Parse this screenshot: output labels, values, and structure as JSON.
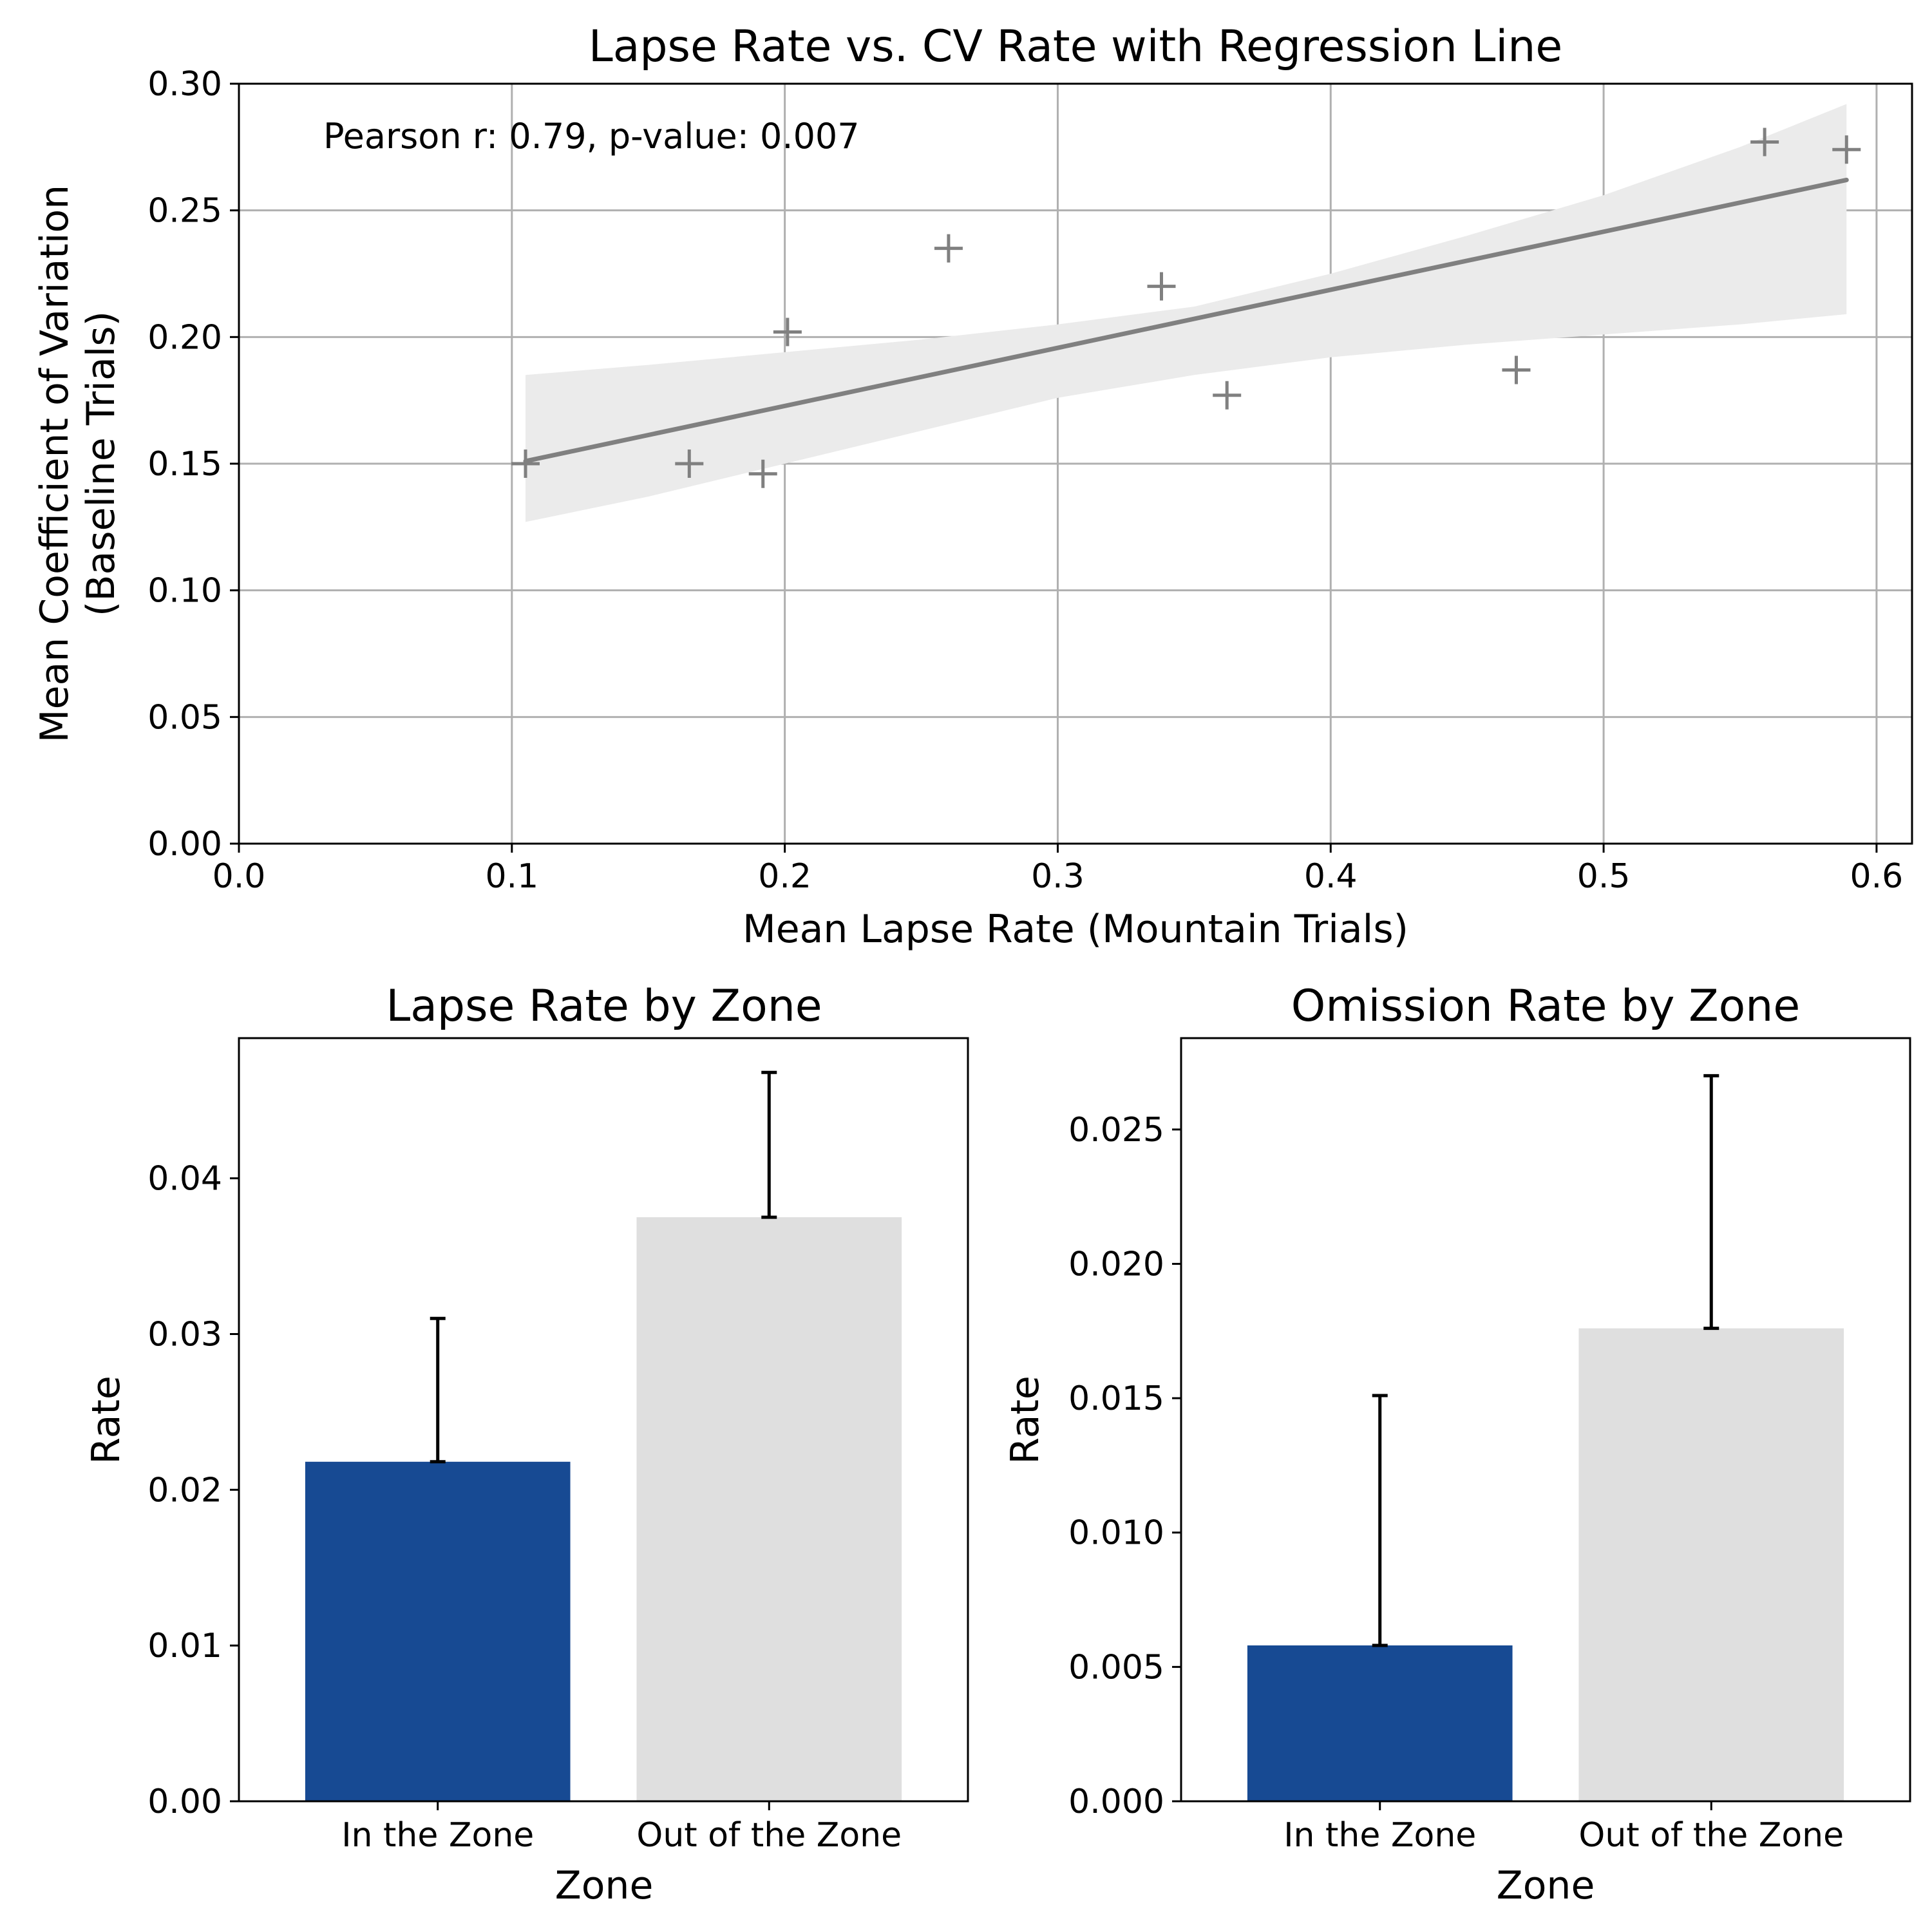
{
  "chart_data": [
    {
      "type": "scatter",
      "title": "Lapse Rate vs. CV Rate with Regression Line",
      "xlabel": "Mean Lapse Rate (Mountain Trials)",
      "ylabel_lines": [
        "Mean Coefficient of Variation",
        "(Baseline Trials)"
      ],
      "annotation": "Pearson r: 0.79, p-value: 0.007",
      "xlim": [
        0,
        0.613
      ],
      "ylim": [
        0,
        0.3
      ],
      "xticks": [
        "0.0",
        "0.1",
        "0.2",
        "0.3",
        "0.4",
        "0.5",
        "0.6"
      ],
      "yticks": [
        "0.00",
        "0.05",
        "0.10",
        "0.15",
        "0.20",
        "0.25",
        "0.30"
      ],
      "grid": true,
      "marker": "+",
      "color": "#808080",
      "band_color": "#ebebeb",
      "points": [
        {
          "x": 0.105,
          "y": 0.15
        },
        {
          "x": 0.165,
          "y": 0.15
        },
        {
          "x": 0.192,
          "y": 0.146
        },
        {
          "x": 0.201,
          "y": 0.202
        },
        {
          "x": 0.26,
          "y": 0.235
        },
        {
          "x": 0.338,
          "y": 0.22
        },
        {
          "x": 0.362,
          "y": 0.177
        },
        {
          "x": 0.468,
          "y": 0.187
        },
        {
          "x": 0.559,
          "y": 0.277
        },
        {
          "x": 0.589,
          "y": 0.274
        }
      ],
      "regression": {
        "x": [
          0.105,
          0.589
        ],
        "y": [
          0.151,
          0.262
        ]
      },
      "confidence_band": {
        "x": [
          0.105,
          0.15,
          0.2,
          0.25,
          0.3,
          0.35,
          0.4,
          0.45,
          0.5,
          0.55,
          0.589
        ],
        "upper": [
          0.185,
          0.189,
          0.194,
          0.199,
          0.205,
          0.212,
          0.225,
          0.24,
          0.256,
          0.275,
          0.292
        ],
        "lower": [
          0.127,
          0.137,
          0.15,
          0.163,
          0.176,
          0.185,
          0.192,
          0.197,
          0.201,
          0.205,
          0.209
        ]
      }
    },
    {
      "type": "bar",
      "title": "Lapse Rate by Zone",
      "xlabel": "Zone",
      "ylabel": "Rate",
      "categories": [
        "In the Zone",
        "Out of the Zone"
      ],
      "values": [
        0.0218,
        0.0375
      ],
      "errors": [
        0.0092,
        0.0093
      ],
      "colors": [
        "#174a93",
        "#dfdfdf"
      ],
      "ylim": [
        0,
        0.049
      ],
      "yticks": [
        0,
        0.01,
        0.02,
        0.03,
        0.04
      ],
      "ytick_labels": [
        "0.00",
        "0.01",
        "0.02",
        "0.03",
        "0.04"
      ]
    },
    {
      "type": "bar",
      "title": "Omission Rate by Zone",
      "xlabel": "Zone",
      "ylabel": "Rate",
      "categories": [
        "In the Zone",
        "Out of the Zone"
      ],
      "values": [
        0.0058,
        0.0176
      ],
      "errors": [
        0.0093,
        0.0094
      ],
      "colors": [
        "#174a93",
        "#dfdfdf"
      ],
      "ylim": [
        0,
        0.0284
      ],
      "yticks": [
        0,
        0.005,
        0.01,
        0.015,
        0.02,
        0.025
      ],
      "ytick_labels": [
        "0.000",
        "0.005",
        "0.010",
        "0.015",
        "0.020",
        "0.025"
      ]
    }
  ]
}
